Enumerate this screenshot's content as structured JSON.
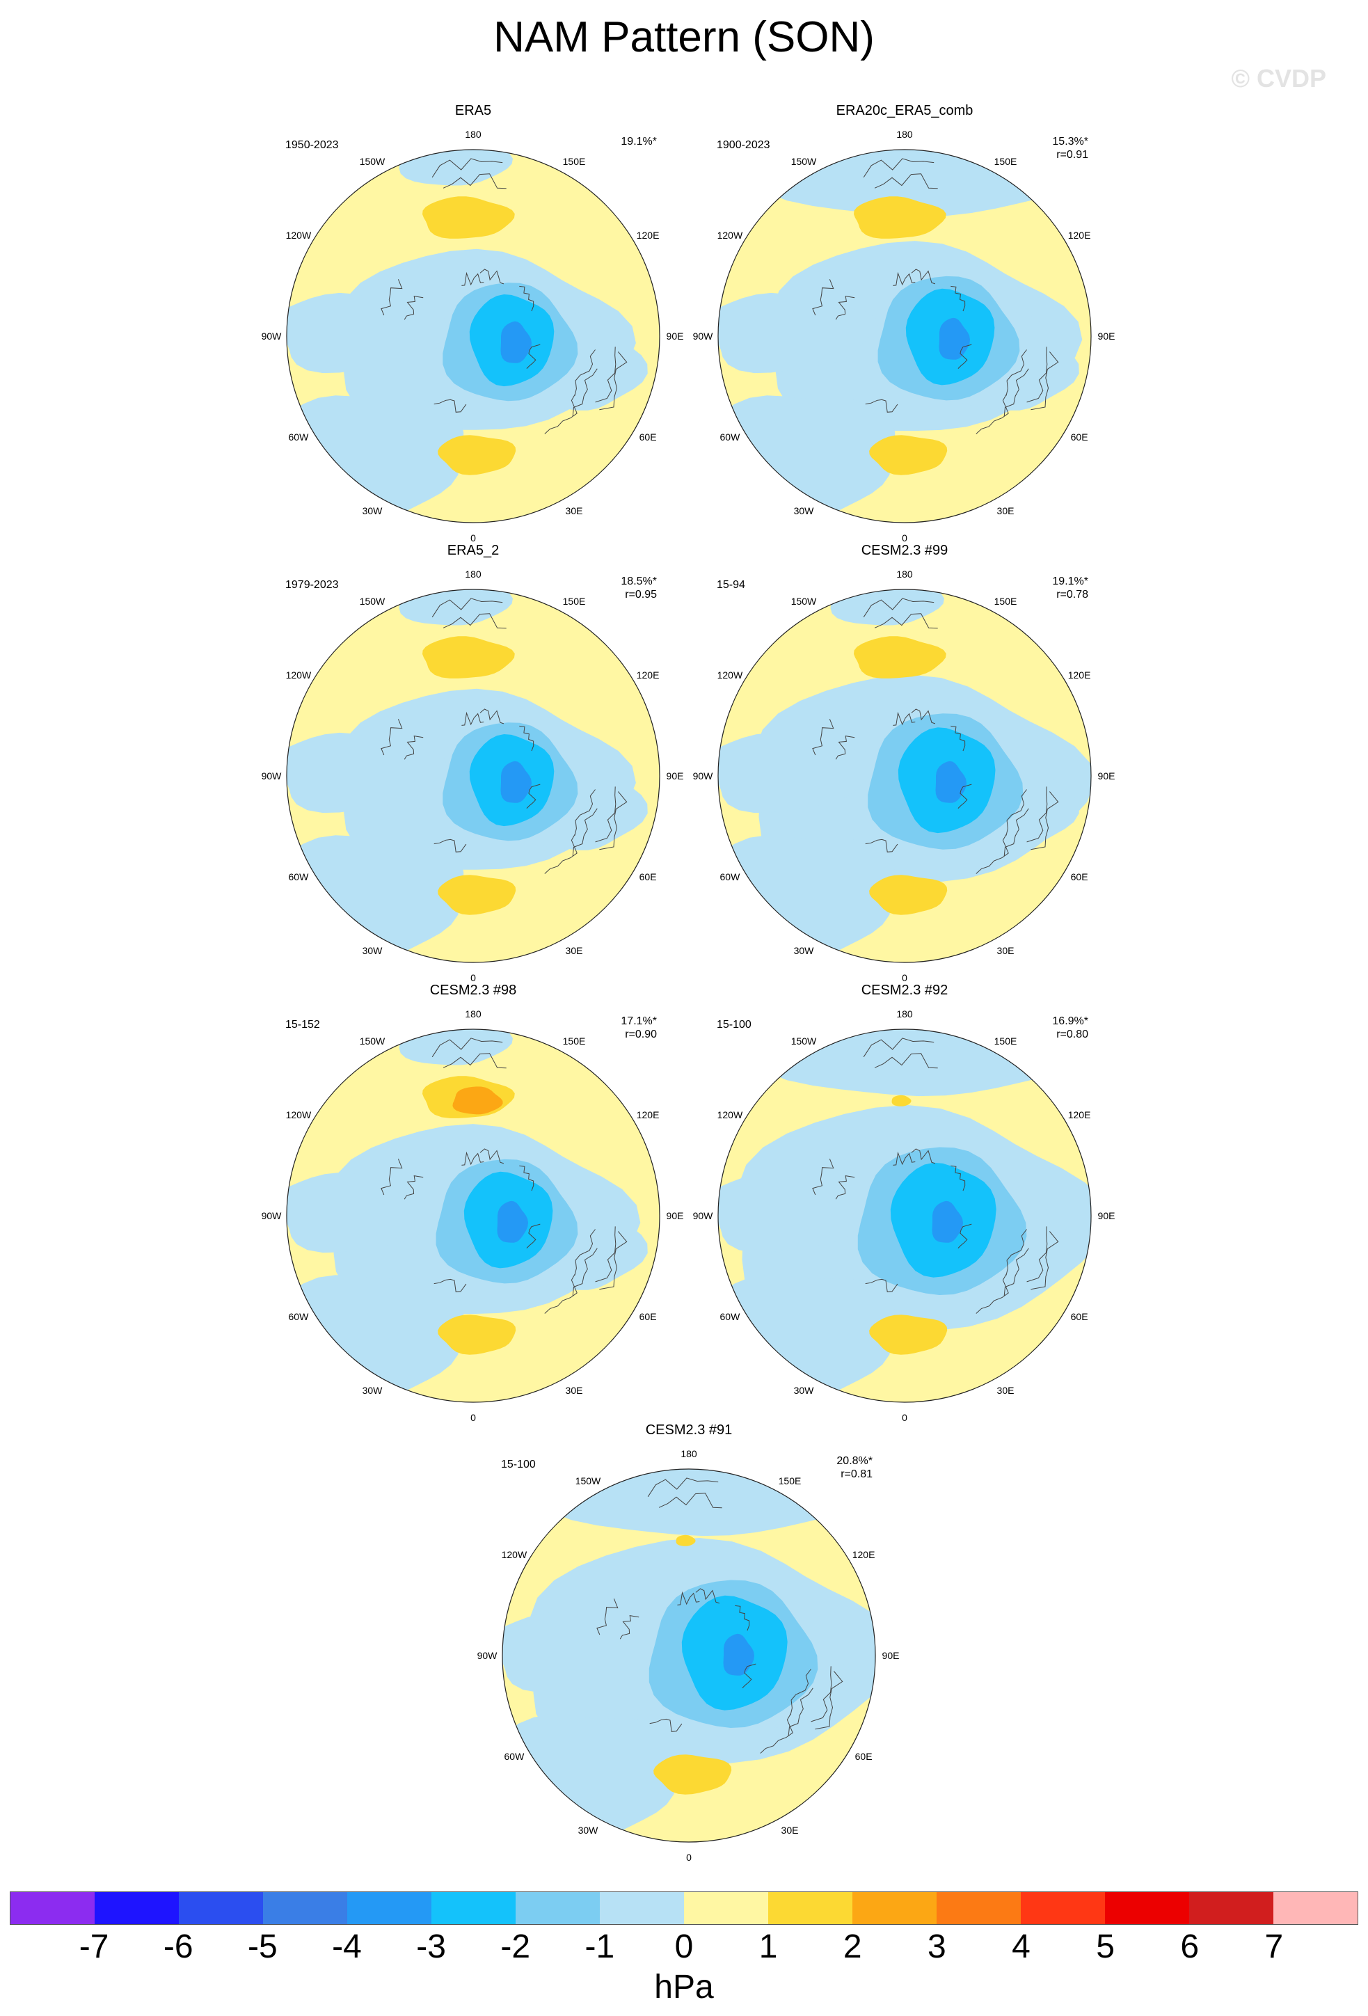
{
  "title": "NAM Pattern (SON)",
  "watermark": "© CVDP",
  "lon_labels": [
    "180",
    "150E",
    "120E",
    "90E",
    "60E",
    "30E",
    "0",
    "30W",
    "60W",
    "90W",
    "120W",
    "150W"
  ],
  "panels": [
    {
      "name": "ERA5",
      "period": "1950-2023",
      "pct": "19.1%*",
      "r": ""
    },
    {
      "name": "ERA20c_ERA5_comb",
      "period": "1900-2023",
      "pct": "15.3%*",
      "r": "r=0.91"
    },
    {
      "name": "ERA5_2",
      "period": "1979-2023",
      "pct": "18.5%*",
      "r": "r=0.95"
    },
    {
      "name": "CESM2.3 #99",
      "period": "15-94",
      "pct": "19.1%*",
      "r": "r=0.78"
    },
    {
      "name": "CESM2.3 #98",
      "period": "15-152",
      "pct": "17.1%*",
      "r": "r=0.90"
    },
    {
      "name": "CESM2.3 #92",
      "period": "15-100",
      "pct": "16.9%*",
      "r": "r=0.80"
    },
    {
      "name": "CESM2.3 #91",
      "period": "15-100",
      "pct": "20.8%*",
      "r": "r=0.81"
    }
  ],
  "colorbar": {
    "unit": "hPa",
    "labels": [
      "-7",
      "-6",
      "-5",
      "-4",
      "-3",
      "-2",
      "-1",
      "0",
      "1",
      "2",
      "3",
      "4",
      "5",
      "6",
      "7"
    ],
    "colors": [
      "#8c2cf0",
      "#1e14ff",
      "#2b4ef0",
      "#3a7ee6",
      "#2499f5",
      "#14c2fb",
      "#7ccdf2",
      "#b7e1f5",
      "#fff7a3",
      "#fcd933",
      "#fca714",
      "#fc7a14",
      "#ff3714",
      "#ec0000",
      "#d11e1e",
      "#ffb7b7"
    ]
  }
}
